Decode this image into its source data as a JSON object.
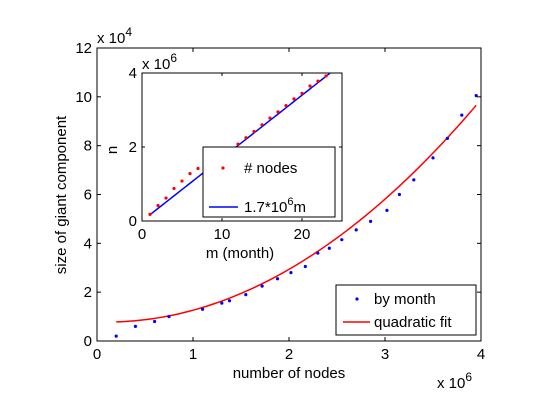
{
  "chart_data": [
    {
      "type": "scatter",
      "xlabel": "number of nodes",
      "ylabel": "size of giant component",
      "x_multiplier": "x 10",
      "x_multiplier_exp": "6",
      "y_multiplier": "x 10",
      "y_multiplier_exp": "4",
      "xlim": [
        0,
        4
      ],
      "ylim": [
        0,
        12
      ],
      "xticks": [
        "0",
        "1",
        "2",
        "3",
        "4"
      ],
      "yticks": [
        "0",
        "2",
        "4",
        "6",
        "8",
        "10",
        "12"
      ],
      "legend_position": "bottom-right",
      "series": [
        {
          "name": "by month",
          "kind": "points",
          "color": "#0000ff",
          "x": [
            0.2,
            0.4,
            0.6,
            0.75,
            1.1,
            1.3,
            1.38,
            1.55,
            1.72,
            1.88,
            2.02,
            2.17,
            2.3,
            2.42,
            2.55,
            2.7,
            2.85,
            3.02,
            3.15,
            3.3,
            3.5,
            3.65,
            3.8,
            3.95
          ],
          "y": [
            0.2,
            0.6,
            0.8,
            1.0,
            1.3,
            1.55,
            1.65,
            1.9,
            2.25,
            2.55,
            2.8,
            3.05,
            3.6,
            3.8,
            4.15,
            4.55,
            4.9,
            5.35,
            6.0,
            6.6,
            7.5,
            8.3,
            9.25,
            10.05
          ]
        },
        {
          "name": "quadratic fit",
          "kind": "line",
          "color": "#ff0000",
          "coefficients": {
            "a": 0.6,
            "b": -0.125,
            "c": 0.785
          },
          "x_range": [
            0.2,
            3.95
          ]
        }
      ]
    },
    {
      "type": "scatter",
      "xlabel": "m (month)",
      "ylabel": "n",
      "y_multiplier": "x 10",
      "y_multiplier_exp": "6",
      "xlim": [
        0,
        25
      ],
      "ylim": [
        0,
        4
      ],
      "xticks": [
        "0",
        "10",
        "20"
      ],
      "yticks": [
        "0",
        "2",
        "4"
      ],
      "legend_position": "bottom-right",
      "series": [
        {
          "name": "# nodes",
          "kind": "points",
          "color": "#ff0000",
          "x": [
            1,
            2,
            3,
            4,
            5,
            6,
            7,
            8,
            9,
            10,
            11,
            12,
            13,
            14,
            15,
            16,
            17,
            18,
            19,
            20,
            21,
            22,
            23
          ],
          "y": [
            0.18,
            0.42,
            0.62,
            0.88,
            1.08,
            1.28,
            1.42,
            1.55,
            1.68,
            1.78,
            1.92,
            2.08,
            2.25,
            2.42,
            2.6,
            2.78,
            2.95,
            3.12,
            3.3,
            3.45,
            3.65,
            3.78,
            3.92
          ]
        },
        {
          "name": "1.7*10",
          "name_exp": "6",
          "name_suffix": "m",
          "kind": "line",
          "color": "#0000ff",
          "slope": 0.17,
          "intercept": 0.0,
          "x_range": [
            1,
            23.5
          ]
        }
      ]
    }
  ]
}
